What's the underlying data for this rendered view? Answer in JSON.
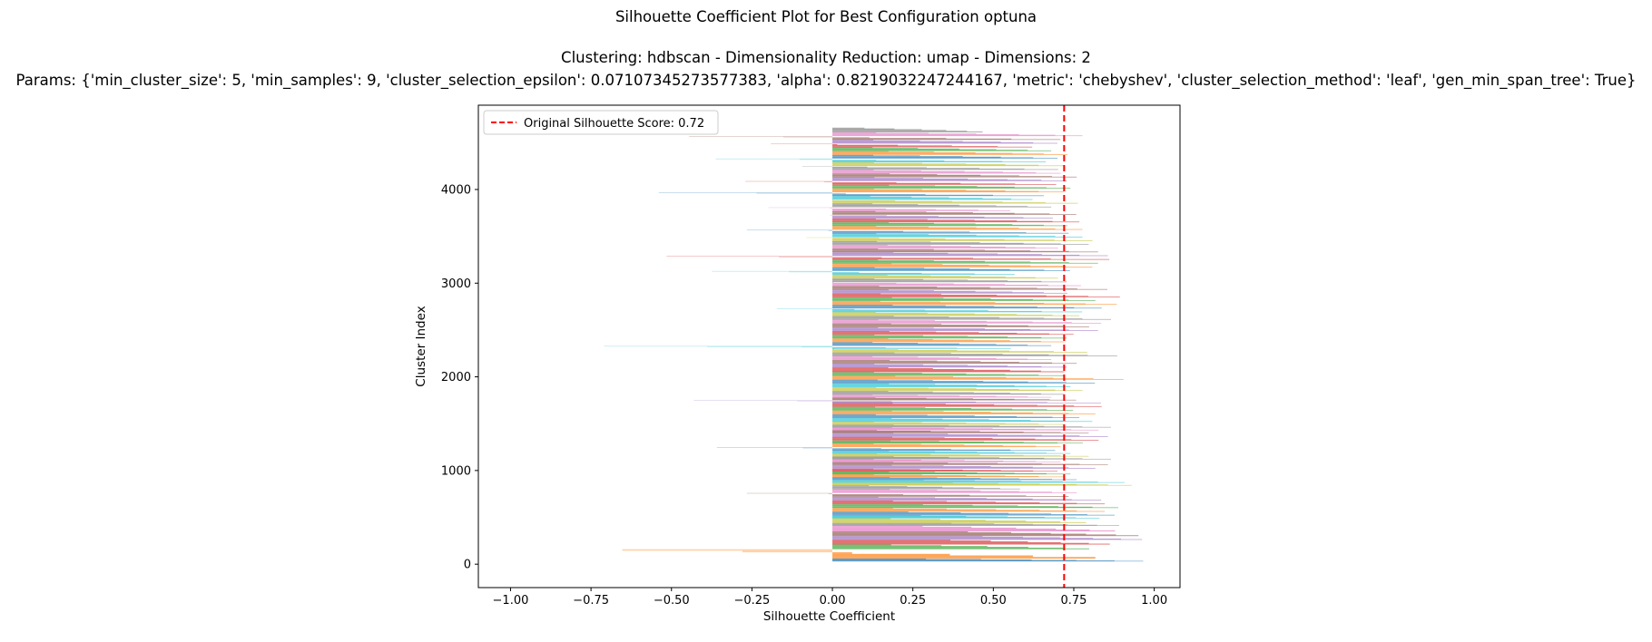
{
  "titles": {
    "main": "Silhouette Coefficient Plot for Best Configuration optuna",
    "subtitle_line1": "Clustering: hdbscan - Dimensionality Reduction: umap - Dimensions: 2",
    "subtitle_line2": "Params: {'min_cluster_size': 5, 'min_samples': 9, 'cluster_selection_epsilon': 0.07107345273577383, 'alpha': 0.8219032247244167, 'metric': 'chebyshev', 'cluster_selection_method': 'leaf', 'gen_min_span_tree': True}"
  },
  "chart_data": {
    "type": "bar",
    "orientation": "horizontal",
    "xlabel": "Silhouette Coefficient",
    "ylabel": "Cluster Index",
    "xlim": [
      -1.1,
      1.08
    ],
    "ylim": [
      -250,
      4900
    ],
    "x_ticks": [
      -1.0,
      -0.75,
      -0.5,
      -0.25,
      0.0,
      0.25,
      0.5,
      0.75,
      1.0
    ],
    "x_tick_labels": [
      "−1.00",
      "−0.75",
      "−0.50",
      "−0.25",
      "0.00",
      "0.25",
      "0.50",
      "0.75",
      "1.00"
    ],
    "y_ticks": [
      0,
      1000,
      2000,
      3000,
      4000
    ],
    "y_tick_labels": [
      "0",
      "1000",
      "2000",
      "3000",
      "4000"
    ],
    "grid": false,
    "reference_line": {
      "x": 0.72,
      "label": "Original Silhouette Score: 0.72",
      "color": "#ff0000",
      "style": "dashed"
    },
    "legend_placement": "upper-left",
    "palette": [
      "#1f77b4",
      "#ff7f0e",
      "#2ca02c",
      "#d62728",
      "#9467bd",
      "#8c564b",
      "#e377c2",
      "#7f7f7f",
      "#bcbd22",
      "#17becf"
    ],
    "clusters": [
      {
        "y_start": 30,
        "y_end": 60,
        "max": 0.99,
        "min": 0.2
      },
      {
        "y_start": 60,
        "y_end": 160,
        "max": 0.87,
        "min": -0.85
      },
      {
        "y_start": 160,
        "y_end": 210,
        "max": 0.82,
        "min": 0.1
      },
      {
        "y_start": 210,
        "y_end": 260,
        "max": 0.88,
        "min": 0.3
      },
      {
        "y_start": 260,
        "y_end": 300,
        "max": 0.98,
        "min": 0.4
      },
      {
        "y_start": 300,
        "y_end": 350,
        "max": 0.97,
        "min": 0.35
      },
      {
        "y_start": 350,
        "y_end": 410,
        "max": 0.9,
        "min": 0.2
      },
      {
        "y_start": 410,
        "y_end": 440,
        "max": 0.91,
        "min": 0.3
      },
      {
        "y_start": 440,
        "y_end": 490,
        "max": 0.81,
        "min": 0.1
      },
      {
        "y_start": 490,
        "y_end": 520,
        "max": 0.85,
        "min": 0.2
      },
      {
        "y_start": 520,
        "y_end": 560,
        "max": 0.9,
        "min": 0.15
      },
      {
        "y_start": 560,
        "y_end": 600,
        "max": 0.87,
        "min": 0.1
      },
      {
        "y_start": 600,
        "y_end": 640,
        "max": 0.91,
        "min": 0.2
      },
      {
        "y_start": 640,
        "y_end": 680,
        "max": 0.87,
        "min": 0.1
      },
      {
        "y_start": 680,
        "y_end": 720,
        "max": 0.86,
        "min": 0.05
      },
      {
        "y_start": 720,
        "y_end": 760,
        "max": 0.77,
        "min": -0.4
      },
      {
        "y_start": 760,
        "y_end": 800,
        "max": 0.78,
        "min": 0.1
      },
      {
        "y_start": 800,
        "y_end": 840,
        "max": 0.6,
        "min": 0.05
      },
      {
        "y_start": 840,
        "y_end": 870,
        "max": 0.95,
        "min": 0.3
      },
      {
        "y_start": 870,
        "y_end": 900,
        "max": 0.93,
        "min": 0.2
      },
      {
        "y_start": 900,
        "y_end": 930,
        "max": 0.78,
        "min": 0.1
      },
      {
        "y_start": 930,
        "y_end": 960,
        "max": 0.74,
        "min": 0.05
      },
      {
        "y_start": 960,
        "y_end": 990,
        "max": 0.76,
        "min": 0.1
      },
      {
        "y_start": 990,
        "y_end": 1020,
        "max": 0.72,
        "min": 0.05
      },
      {
        "y_start": 1020,
        "y_end": 1060,
        "max": 0.84,
        "min": 0.1
      },
      {
        "y_start": 1060,
        "y_end": 1090,
        "max": 0.88,
        "min": 0.1
      },
      {
        "y_start": 1090,
        "y_end": 1120,
        "max": 0.73,
        "min": 0.05
      },
      {
        "y_start": 1120,
        "y_end": 1150,
        "max": 0.89,
        "min": 0.1
      },
      {
        "y_start": 1150,
        "y_end": 1180,
        "max": 0.82,
        "min": 0.05
      },
      {
        "y_start": 1180,
        "y_end": 1210,
        "max": 0.76,
        "min": 0.1
      },
      {
        "y_start": 1210,
        "y_end": 1250,
        "max": 0.73,
        "min": -0.5
      },
      {
        "y_start": 1250,
        "y_end": 1290,
        "max": 0.73,
        "min": 0.05
      },
      {
        "y_start": 1290,
        "y_end": 1320,
        "max": 0.8,
        "min": 0.1
      },
      {
        "y_start": 1320,
        "y_end": 1360,
        "max": 0.85,
        "min": 0.1
      },
      {
        "y_start": 1360,
        "y_end": 1400,
        "max": 0.88,
        "min": 0.1
      },
      {
        "y_start": 1400,
        "y_end": 1430,
        "max": 0.82,
        "min": 0.05
      },
      {
        "y_start": 1430,
        "y_end": 1460,
        "max": 0.85,
        "min": 0.1
      },
      {
        "y_start": 1460,
        "y_end": 1490,
        "max": 0.89,
        "min": 0.1
      },
      {
        "y_start": 1490,
        "y_end": 1520,
        "max": 0.74,
        "min": 0.05
      },
      {
        "y_start": 1520,
        "y_end": 1560,
        "max": 0.83,
        "min": 0.1
      },
      {
        "y_start": 1560,
        "y_end": 1600,
        "max": 0.79,
        "min": 0.05
      },
      {
        "y_start": 1600,
        "y_end": 1640,
        "max": 0.84,
        "min": 0.1
      },
      {
        "y_start": 1640,
        "y_end": 1680,
        "max": 0.77,
        "min": 0.05
      },
      {
        "y_start": 1680,
        "y_end": 1720,
        "max": 0.86,
        "min": 0.1
      },
      {
        "y_start": 1720,
        "y_end": 1750,
        "max": 0.88,
        "min": -0.6
      },
      {
        "y_start": 1750,
        "y_end": 1780,
        "max": 0.78,
        "min": 0.05
      },
      {
        "y_start": 1780,
        "y_end": 1810,
        "max": 0.7,
        "min": 0.05
      },
      {
        "y_start": 1810,
        "y_end": 1850,
        "max": 0.74,
        "min": 0.1
      },
      {
        "y_start": 1850,
        "y_end": 1890,
        "max": 0.8,
        "min": 0.05
      },
      {
        "y_start": 1890,
        "y_end": 1930,
        "max": 0.76,
        "min": 0.1
      },
      {
        "y_start": 1930,
        "y_end": 1970,
        "max": 0.84,
        "min": 0.05
      },
      {
        "y_start": 1970,
        "y_end": 2010,
        "max": 0.93,
        "min": 0.1
      },
      {
        "y_start": 2010,
        "y_end": 2050,
        "max": 0.74,
        "min": 0.05
      },
      {
        "y_start": 2050,
        "y_end": 2100,
        "max": 0.74,
        "min": 0.1
      },
      {
        "y_start": 2100,
        "y_end": 2140,
        "max": 0.75,
        "min": 0.05
      },
      {
        "y_start": 2140,
        "y_end": 2180,
        "max": 0.78,
        "min": 0.1
      },
      {
        "y_start": 2180,
        "y_end": 2220,
        "max": 0.7,
        "min": 0.05
      },
      {
        "y_start": 2220,
        "y_end": 2260,
        "max": 0.91,
        "min": 0.1
      },
      {
        "y_start": 2260,
        "y_end": 2300,
        "max": 0.82,
        "min": -0.1
      },
      {
        "y_start": 2300,
        "y_end": 2330,
        "max": 0.6,
        "min": -0.88
      },
      {
        "y_start": 2330,
        "y_end": 2370,
        "max": 0.7,
        "min": 0.05
      },
      {
        "y_start": 2370,
        "y_end": 2410,
        "max": 0.74,
        "min": 0.1
      },
      {
        "y_start": 2410,
        "y_end": 2450,
        "max": 0.75,
        "min": 0.05
      },
      {
        "y_start": 2450,
        "y_end": 2490,
        "max": 0.77,
        "min": 0.1
      },
      {
        "y_start": 2490,
        "y_end": 2530,
        "max": 0.85,
        "min": 0.05
      },
      {
        "y_start": 2530,
        "y_end": 2570,
        "max": 0.82,
        "min": 0.1
      },
      {
        "y_start": 2570,
        "y_end": 2610,
        "max": 0.86,
        "min": 0.05
      },
      {
        "y_start": 2610,
        "y_end": 2650,
        "max": 0.89,
        "min": 0.1
      },
      {
        "y_start": 2650,
        "y_end": 2690,
        "max": 0.79,
        "min": 0.05
      },
      {
        "y_start": 2690,
        "y_end": 2730,
        "max": 0.81,
        "min": -0.3
      },
      {
        "y_start": 2730,
        "y_end": 2770,
        "max": 0.86,
        "min": 0.1
      },
      {
        "y_start": 2770,
        "y_end": 2810,
        "max": 0.91,
        "min": 0.05
      },
      {
        "y_start": 2810,
        "y_end": 2850,
        "max": 0.84,
        "min": 0.1
      },
      {
        "y_start": 2850,
        "y_end": 2890,
        "max": 0.92,
        "min": 0.05
      },
      {
        "y_start": 2890,
        "y_end": 2930,
        "max": 0.75,
        "min": 0.1
      },
      {
        "y_start": 2930,
        "y_end": 2970,
        "max": 0.88,
        "min": 0.05
      },
      {
        "y_start": 2970,
        "y_end": 3010,
        "max": 0.8,
        "min": -0.1
      },
      {
        "y_start": 3010,
        "y_end": 3050,
        "max": 0.75,
        "min": 0.05
      },
      {
        "y_start": 3050,
        "y_end": 3090,
        "max": 0.72,
        "min": 0.1
      },
      {
        "y_start": 3090,
        "y_end": 3130,
        "max": 0.6,
        "min": -0.5
      },
      {
        "y_start": 3130,
        "y_end": 3170,
        "max": 0.76,
        "min": 0.05
      },
      {
        "y_start": 3170,
        "y_end": 3210,
        "max": 0.83,
        "min": 0.1
      },
      {
        "y_start": 3210,
        "y_end": 3250,
        "max": 0.85,
        "min": 0.05
      },
      {
        "y_start": 3250,
        "y_end": 3290,
        "max": 0.91,
        "min": -0.7
      },
      {
        "y_start": 3290,
        "y_end": 3330,
        "max": 0.88,
        "min": 0.1
      },
      {
        "y_start": 3330,
        "y_end": 3370,
        "max": 0.85,
        "min": 0.05
      },
      {
        "y_start": 3370,
        "y_end": 3410,
        "max": 0.72,
        "min": 0.1
      },
      {
        "y_start": 3410,
        "y_end": 3450,
        "max": 0.82,
        "min": 0.05
      },
      {
        "y_start": 3450,
        "y_end": 3490,
        "max": 0.84,
        "min": -0.2
      },
      {
        "y_start": 3490,
        "y_end": 3530,
        "max": 0.8,
        "min": 0.05
      },
      {
        "y_start": 3530,
        "y_end": 3570,
        "max": 0.77,
        "min": -0.4
      },
      {
        "y_start": 3570,
        "y_end": 3610,
        "max": 0.8,
        "min": 0.05
      },
      {
        "y_start": 3610,
        "y_end": 3650,
        "max": 0.75,
        "min": 0.1
      },
      {
        "y_start": 3650,
        "y_end": 3690,
        "max": 0.79,
        "min": 0.05
      },
      {
        "y_start": 3690,
        "y_end": 3730,
        "max": 0.71,
        "min": -0.1
      },
      {
        "y_start": 3730,
        "y_end": 3770,
        "max": 0.78,
        "min": 0.05
      },
      {
        "y_start": 3770,
        "y_end": 3810,
        "max": 0.58,
        "min": -0.3
      },
      {
        "y_start": 3810,
        "y_end": 3850,
        "max": 0.7,
        "min": 0.05
      },
      {
        "y_start": 3850,
        "y_end": 3890,
        "max": 0.79,
        "min": -0.1
      },
      {
        "y_start": 3890,
        "y_end": 3930,
        "max": 0.64,
        "min": 0.05
      },
      {
        "y_start": 3930,
        "y_end": 3970,
        "max": 0.7,
        "min": -0.7
      },
      {
        "y_start": 3970,
        "y_end": 4010,
        "max": 0.74,
        "min": 0.05
      },
      {
        "y_start": 4010,
        "y_end": 4050,
        "max": 0.76,
        "min": 0.1
      },
      {
        "y_start": 4050,
        "y_end": 4090,
        "max": 0.73,
        "min": -0.4
      },
      {
        "y_start": 4090,
        "y_end": 4130,
        "max": 0.75,
        "min": 0.05
      },
      {
        "y_start": 4130,
        "y_end": 4170,
        "max": 0.78,
        "min": 0.1
      },
      {
        "y_start": 4170,
        "y_end": 4210,
        "max": 0.73,
        "min": 0.05
      },
      {
        "y_start": 4210,
        "y_end": 4250,
        "max": 0.73,
        "min": -0.2
      },
      {
        "y_start": 4250,
        "y_end": 4290,
        "max": 0.74,
        "min": 0.05
      },
      {
        "y_start": 4290,
        "y_end": 4330,
        "max": 0.7,
        "min": -0.5
      },
      {
        "y_start": 4330,
        "y_end": 4370,
        "max": 0.72,
        "min": 0.05
      },
      {
        "y_start": 4370,
        "y_end": 4410,
        "max": 0.75,
        "min": 0.1
      },
      {
        "y_start": 4410,
        "y_end": 4450,
        "max": 0.7,
        "min": 0.05
      },
      {
        "y_start": 4450,
        "y_end": 4490,
        "max": 0.65,
        "min": -0.3
      },
      {
        "y_start": 4490,
        "y_end": 4530,
        "max": 0.72,
        "min": 0.05
      },
      {
        "y_start": 4530,
        "y_end": 4570,
        "max": 0.75,
        "min": -0.6
      },
      {
        "y_start": 4570,
        "y_end": 4610,
        "max": 0.8,
        "min": 0.05
      },
      {
        "y_start": 4610,
        "y_end": 4660,
        "max": 0.48,
        "min": 0.05
      }
    ]
  }
}
